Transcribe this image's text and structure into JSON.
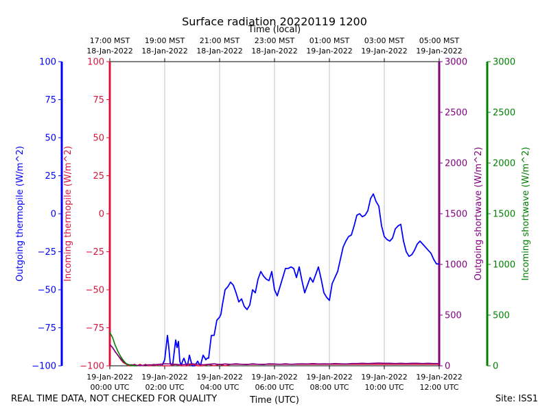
{
  "chart_data": {
    "type": "line",
    "title": "Surface radiation 20220119 1200",
    "xlabel": "Time (UTC)",
    "xlabel_top": "Time (local)",
    "x_ticks_bottom": [
      {
        "t": 0,
        "line1": "19-Jan-2022",
        "line2": "00:00 UTC"
      },
      {
        "t": 2,
        "line1": "19-Jan-2022",
        "line2": "02:00 UTC"
      },
      {
        "t": 4,
        "line1": "19-Jan-2022",
        "line2": "04:00 UTC"
      },
      {
        "t": 6,
        "line1": "19-Jan-2022",
        "line2": "06:00 UTC"
      },
      {
        "t": 8,
        "line1": "19-Jan-2022",
        "line2": "08:00 UTC"
      },
      {
        "t": 10,
        "line1": "19-Jan-2022",
        "line2": "10:00 UTC"
      },
      {
        "t": 12,
        "line1": "19-Jan-2022",
        "line2": "12:00 UTC"
      }
    ],
    "x_ticks_top": [
      {
        "t": 0,
        "line1": "17:00 MST",
        "line2": "18-Jan-2022"
      },
      {
        "t": 2,
        "line1": "19:00 MST",
        "line2": "18-Jan-2022"
      },
      {
        "t": 4,
        "line1": "21:00 MST",
        "line2": "18-Jan-2022"
      },
      {
        "t": 6,
        "line1": "23:00 MST",
        "line2": "18-Jan-2022"
      },
      {
        "t": 8,
        "line1": "01:00 MST",
        "line2": "19-Jan-2022"
      },
      {
        "t": 10,
        "line1": "03:00 MST",
        "line2": "19-Jan-2022"
      },
      {
        "t": 12,
        "line1": "05:00 MST",
        "line2": "19-Jan-2022"
      }
    ],
    "xlim": [
      0,
      12
    ],
    "grid": "vertical",
    "axes": [
      {
        "id": "outgoing-thermopile",
        "label": "Outgoing thermopile (W/m^2)",
        "color": "#0000ff",
        "ylim": [
          -100,
          100
        ],
        "ticks": [
          100,
          75,
          50,
          25,
          0,
          -25,
          -50,
          -75,
          -100
        ],
        "side": "left-outer"
      },
      {
        "id": "incoming-thermopile",
        "label": "Incoming thermopile (W/m^2)",
        "color": "#dc143c",
        "ylim": [
          -100,
          100
        ],
        "ticks": [
          100,
          75,
          50,
          25,
          0,
          -25,
          -50,
          -75,
          -100
        ],
        "side": "left-inner"
      },
      {
        "id": "outgoing-shortwave",
        "label": "Outgoing shortwave (W/m^2)",
        "color": "#800080",
        "ylim": [
          0,
          3000
        ],
        "ticks": [
          3000,
          2500,
          2000,
          1500,
          1000,
          500,
          0
        ],
        "side": "right-inner"
      },
      {
        "id": "incoming-shortwave",
        "label": "Incoming shortwave (W/m^2)",
        "color": "#008000",
        "ylim": [
          0,
          3000
        ],
        "ticks": [
          3000,
          2500,
          2000,
          1500,
          1000,
          500,
          0
        ],
        "side": "right-outer"
      }
    ],
    "series": [
      {
        "name": "Outgoing thermopile",
        "axis": "outgoing-thermopile",
        "color": "#0000ff",
        "x": [
          1.9,
          2.0,
          2.1,
          2.15,
          2.2,
          2.25,
          2.3,
          2.4,
          2.45,
          2.5,
          2.55,
          2.6,
          2.65,
          2.7,
          2.8,
          2.85,
          2.9,
          3.0,
          3.1,
          3.2,
          3.3,
          3.4,
          3.5,
          3.55,
          3.6,
          3.7,
          3.8,
          3.9,
          4.0,
          4.05,
          4.1,
          4.2,
          4.3,
          4.4,
          4.5,
          4.6,
          4.7,
          4.75,
          4.8,
          4.9,
          5.0,
          5.1,
          5.2,
          5.3,
          5.4,
          5.5,
          5.6,
          5.7,
          5.8,
          5.9,
          6.0,
          6.1,
          6.2,
          6.3,
          6.4,
          6.5,
          6.6,
          6.7,
          6.8,
          6.9,
          7.0,
          7.1,
          7.2,
          7.3,
          7.4,
          7.5,
          7.6,
          7.7,
          7.8,
          7.9,
          8.0,
          8.1,
          8.2,
          8.3,
          8.4,
          8.5,
          8.6,
          8.7,
          8.8,
          8.9,
          9.0,
          9.1,
          9.2,
          9.3,
          9.4,
          9.5,
          9.6,
          9.7,
          9.8,
          9.9,
          10.0,
          10.1,
          10.2,
          10.3,
          10.4,
          10.5,
          10.6,
          10.7,
          10.8,
          10.9,
          11.0,
          11.1,
          11.2,
          11.3,
          11.4,
          11.5,
          11.6,
          11.7,
          11.8,
          11.9,
          12.0
        ],
        "values": [
          -100,
          -96,
          -80,
          -88,
          -98,
          -100,
          -98,
          -83,
          -88,
          -84,
          -97,
          -100,
          -97,
          -95,
          -100,
          -98,
          -93,
          -100,
          -100,
          -97,
          -100,
          -93,
          -96,
          -95,
          -95,
          -80,
          -80,
          -70,
          -68,
          -66,
          -60,
          -50,
          -48,
          -45,
          -47,
          -52,
          -58,
          -57,
          -56,
          -61,
          -63,
          -60,
          -50,
          -52,
          -43,
          -38,
          -41,
          -43,
          -44,
          -38,
          -50,
          -54,
          -48,
          -42,
          -36,
          -36,
          -35,
          -36,
          -42,
          -35,
          -44,
          -52,
          -47,
          -42,
          -45,
          -40,
          -35,
          -43,
          -52,
          -55,
          -57,
          -46,
          -42,
          -38,
          -30,
          -22,
          -18,
          -15,
          -14,
          -8,
          -1,
          0,
          -2,
          -1,
          2,
          10,
          13,
          8,
          5,
          -8,
          -15,
          -17,
          -18,
          -16,
          -10,
          -8,
          -7,
          -18,
          -25,
          -28,
          -27,
          -24,
          -20,
          -18,
          -20,
          -22,
          -24,
          -26,
          -30,
          -33,
          -33
        ]
      },
      {
        "name": "Incoming thermopile",
        "axis": "incoming-thermopile",
        "color": "#dc143c",
        "x": [
          0.0,
          0.1,
          0.2,
          0.3,
          0.4,
          0.5,
          0.6,
          0.7,
          0.8,
          0.9,
          1.0,
          1.1,
          1.2,
          1.3,
          1.4,
          1.5,
          1.6,
          1.7,
          1.8,
          1.9,
          2.0,
          2.2,
          2.4,
          2.6,
          2.8,
          3.0,
          3.2,
          3.4,
          3.6,
          3.8,
          4.0,
          4.2,
          4.4,
          4.6,
          4.8,
          5.0,
          5.2,
          5.4,
          5.6,
          5.8,
          6.0,
          6.2,
          6.4,
          6.6,
          6.8,
          7.0,
          7.2,
          7.4,
          7.6,
          7.8,
          8.0,
          8.2,
          8.4,
          8.6,
          8.8,
          9.0,
          9.2,
          9.4,
          9.6,
          9.8,
          10.0,
          10.2,
          10.4,
          10.6,
          10.8,
          11.0,
          11.2,
          11.4,
          11.6,
          11.8,
          12.0
        ],
        "values": [
          -86,
          -88,
          -91,
          -93,
          -96,
          -98,
          -99,
          -100,
          -100,
          -99,
          -100,
          -99,
          -100,
          -99,
          -100,
          -100,
          -99,
          -100,
          -99,
          -100,
          -100,
          -100,
          -99,
          -100,
          -100,
          -99,
          -100,
          -100,
          -99,
          -100,
          -99,
          -100,
          -99,
          -99,
          -99,
          -99,
          -99,
          -99,
          -99,
          -99,
          -99,
          -99,
          -99,
          -99,
          -99,
          -99,
          -99,
          -99,
          -99,
          -99,
          -99,
          -99,
          -99,
          -99,
          -99,
          -99,
          -99,
          -99,
          -99,
          -99,
          -99,
          -99,
          -99,
          -99,
          -99,
          -99,
          -99,
          -99,
          -99,
          -99,
          -99
        ]
      },
      {
        "name": "Outgoing shortwave",
        "axis": "outgoing-shortwave",
        "color": "#800080",
        "x": [
          0.0,
          0.1,
          0.2,
          0.3,
          0.4,
          0.5,
          0.6,
          0.7,
          0.8,
          0.9,
          1.0,
          1.2,
          1.4,
          1.6,
          1.8,
          2.0,
          2.2,
          2.4,
          2.6,
          2.8,
          3.0,
          3.2,
          3.4,
          3.6,
          3.8,
          4.0,
          4.2,
          4.4,
          4.6,
          4.8,
          5.0,
          5.2,
          5.4,
          5.6,
          5.8,
          6.0,
          6.2,
          6.4,
          6.6,
          6.8,
          7.0,
          7.2,
          7.4,
          7.6,
          7.8,
          8.0,
          8.2,
          8.4,
          8.6,
          8.8,
          9.0,
          9.2,
          9.4,
          9.6,
          9.8,
          10.0,
          10.2,
          10.4,
          10.6,
          10.8,
          11.0,
          11.2,
          11.4,
          11.6,
          11.8,
          12.0
        ],
        "values": [
          210,
          180,
          140,
          100,
          70,
          40,
          20,
          10,
          10,
          8,
          5,
          5,
          10,
          10,
          15,
          20,
          18,
          15,
          10,
          15,
          20,
          15,
          10,
          15,
          20,
          12,
          18,
          15,
          20,
          15,
          12,
          20,
          15,
          12,
          20,
          18,
          15,
          20,
          15,
          18,
          20,
          18,
          22,
          18,
          20,
          18,
          22,
          20,
          18,
          22,
          22,
          25,
          22,
          25,
          28,
          25,
          25,
          22,
          25,
          22,
          25,
          25,
          22,
          25,
          22,
          22
        ]
      },
      {
        "name": "Incoming shortwave",
        "axis": "incoming-shortwave",
        "color": "#008000",
        "x": [
          0.0,
          0.1,
          0.2,
          0.3,
          0.4,
          0.5,
          0.6,
          0.7,
          0.8,
          0.9,
          1.0
        ],
        "values": [
          330,
          280,
          200,
          140,
          90,
          50,
          20,
          8,
          2,
          0,
          0
        ]
      }
    ]
  },
  "footer": {
    "left": "REAL TIME DATA, NOT CHECKED FOR QUALITY",
    "right": "Site: ISS1"
  }
}
